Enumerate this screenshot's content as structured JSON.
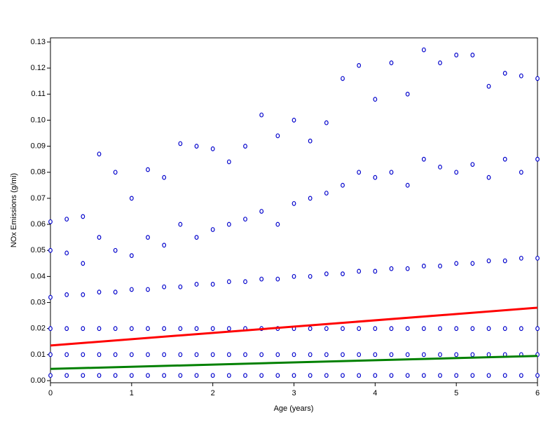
{
  "chart_data": {
    "type": "scatter",
    "x_label": "Age (years)",
    "y_label": "NOx Emissions (g/mi)",
    "xlim": [
      0,
      6
    ],
    "ylim": [
      -0.0008,
      0.1316
    ],
    "xticks": [
      0,
      1,
      2,
      3,
      4,
      5,
      6
    ],
    "yticks": [
      {
        "value": 0,
        "label": "0.00"
      },
      {
        "value": 0.01,
        "label": "0.01"
      },
      {
        "value": 0.02,
        "label": "0.02"
      },
      {
        "value": 0.03,
        "label": "0.03"
      },
      {
        "value": 0.04,
        "label": "0.04"
      },
      {
        "value": 0.05,
        "label": "0.05"
      },
      {
        "value": 0.06,
        "label": "0.06"
      },
      {
        "value": 0.07,
        "label": "0.07"
      },
      {
        "value": 0.08,
        "label": "0.08"
      },
      {
        "value": 0.09,
        "label": "0.09"
      },
      {
        "value": 0.1,
        "label": "0.10"
      },
      {
        "value": 0.11,
        "label": "0.11"
      },
      {
        "value": 0.12,
        "label": "0.12"
      },
      {
        "value": 0.13,
        "label": "0.13"
      }
    ],
    "points": {
      "color": "#0000cc",
      "x": [
        0,
        0,
        0,
        0,
        0,
        0,
        0.2,
        0.2,
        0.2,
        0.2,
        0.2,
        0.2,
        0.4,
        0.4,
        0.4,
        0.4,
        0.4,
        0.4,
        0.6,
        0.6,
        0.6,
        0.6,
        0.6,
        0.6,
        0.8,
        0.8,
        0.8,
        0.8,
        0.8,
        0.8,
        1,
        1,
        1,
        1,
        1,
        1,
        1.2,
        1.2,
        1.2,
        1.2,
        1.2,
        1.2,
        1.4,
        1.4,
        1.4,
        1.4,
        1.4,
        1.4,
        1.6,
        1.6,
        1.6,
        1.6,
        1.6,
        1.6,
        1.8,
        1.8,
        1.8,
        1.8,
        1.8,
        1.8,
        2,
        2,
        2,
        2,
        2,
        2,
        2.2,
        2.2,
        2.2,
        2.2,
        2.2,
        2.2,
        2.4,
        2.4,
        2.4,
        2.4,
        2.4,
        2.4,
        2.6,
        2.6,
        2.6,
        2.6,
        2.6,
        2.6,
        2.8,
        2.8,
        2.8,
        2.8,
        2.8,
        2.8,
        3,
        3,
        3,
        3,
        3,
        3,
        3.2,
        3.2,
        3.2,
        3.2,
        3.2,
        3.2,
        3.4,
        3.4,
        3.4,
        3.4,
        3.4,
        3.4,
        3.6,
        3.6,
        3.6,
        3.6,
        3.6,
        3.6,
        3.8,
        3.8,
        3.8,
        3.8,
        3.8,
        3.8,
        4,
        4,
        4,
        4,
        4,
        4,
        4.2,
        4.2,
        4.2,
        4.2,
        4.2,
        4.2,
        4.4,
        4.4,
        4.4,
        4.4,
        4.4,
        4.4,
        4.6,
        4.6,
        4.6,
        4.6,
        4.6,
        4.6,
        4.8,
        4.8,
        4.8,
        4.8,
        4.8,
        4.8,
        5,
        5,
        5,
        5,
        5,
        5,
        5.2,
        5.2,
        5.2,
        5.2,
        5.2,
        5.2,
        5.4,
        5.4,
        5.4,
        5.4,
        5.4,
        5.4,
        5.6,
        5.6,
        5.6,
        5.6,
        5.6,
        5.6,
        5.8,
        5.8,
        5.8,
        5.8,
        5.8,
        5.8,
        6,
        6,
        6,
        6,
        6,
        6
      ],
      "values": [
        0.002,
        0.01,
        0.02,
        0.032,
        0.05,
        0.061,
        0.002,
        0.01,
        0.02,
        0.033,
        0.049,
        0.062,
        0.002,
        0.01,
        0.02,
        0.033,
        0.045,
        0.063,
        0.002,
        0.01,
        0.02,
        0.034,
        0.055,
        0.087,
        0.002,
        0.01,
        0.02,
        0.034,
        0.05,
        0.08,
        0.002,
        0.01,
        0.02,
        0.035,
        0.048,
        0.07,
        0.002,
        0.01,
        0.02,
        0.035,
        0.055,
        0.081,
        0.002,
        0.01,
        0.02,
        0.036,
        0.052,
        0.078,
        0.002,
        0.01,
        0.02,
        0.036,
        0.06,
        0.091,
        0.002,
        0.01,
        0.02,
        0.037,
        0.055,
        0.09,
        0.002,
        0.01,
        0.02,
        0.037,
        0.058,
        0.089,
        0.002,
        0.01,
        0.02,
        0.038,
        0.06,
        0.084,
        0.002,
        0.01,
        0.02,
        0.038,
        0.062,
        0.09,
        0.002,
        0.01,
        0.02,
        0.039,
        0.065,
        0.102,
        0.002,
        0.01,
        0.02,
        0.039,
        0.06,
        0.094,
        0.002,
        0.01,
        0.02,
        0.04,
        0.068,
        0.1,
        0.002,
        0.01,
        0.02,
        0.04,
        0.07,
        0.092,
        0.002,
        0.01,
        0.02,
        0.041,
        0.072,
        0.099,
        0.002,
        0.01,
        0.02,
        0.041,
        0.075,
        0.116,
        0.002,
        0.01,
        0.02,
        0.042,
        0.08,
        0.121,
        0.002,
        0.01,
        0.02,
        0.042,
        0.078,
        0.108,
        0.002,
        0.01,
        0.02,
        0.043,
        0.08,
        0.122,
        0.002,
        0.01,
        0.02,
        0.043,
        0.075,
        0.11,
        0.002,
        0.01,
        0.02,
        0.044,
        0.085,
        0.127,
        0.002,
        0.01,
        0.02,
        0.044,
        0.082,
        0.122,
        0.002,
        0.01,
        0.02,
        0.045,
        0.08,
        0.125,
        0.002,
        0.01,
        0.02,
        0.045,
        0.083,
        0.125,
        0.002,
        0.01,
        0.02,
        0.046,
        0.078,
        0.113,
        0.002,
        0.01,
        0.02,
        0.046,
        0.085,
        0.118,
        0.002,
        0.01,
        0.02,
        0.047,
        0.08,
        0.117,
        0.002,
        0.01,
        0.02,
        0.047,
        0.085,
        0.116
      ]
    },
    "lines": [
      {
        "color": "#ff0000",
        "x": [
          0,
          6
        ],
        "values": [
          0.0135,
          0.028
        ]
      },
      {
        "color": "#008000",
        "x": [
          0,
          6
        ],
        "values": [
          0.0045,
          0.0095
        ]
      }
    ]
  }
}
